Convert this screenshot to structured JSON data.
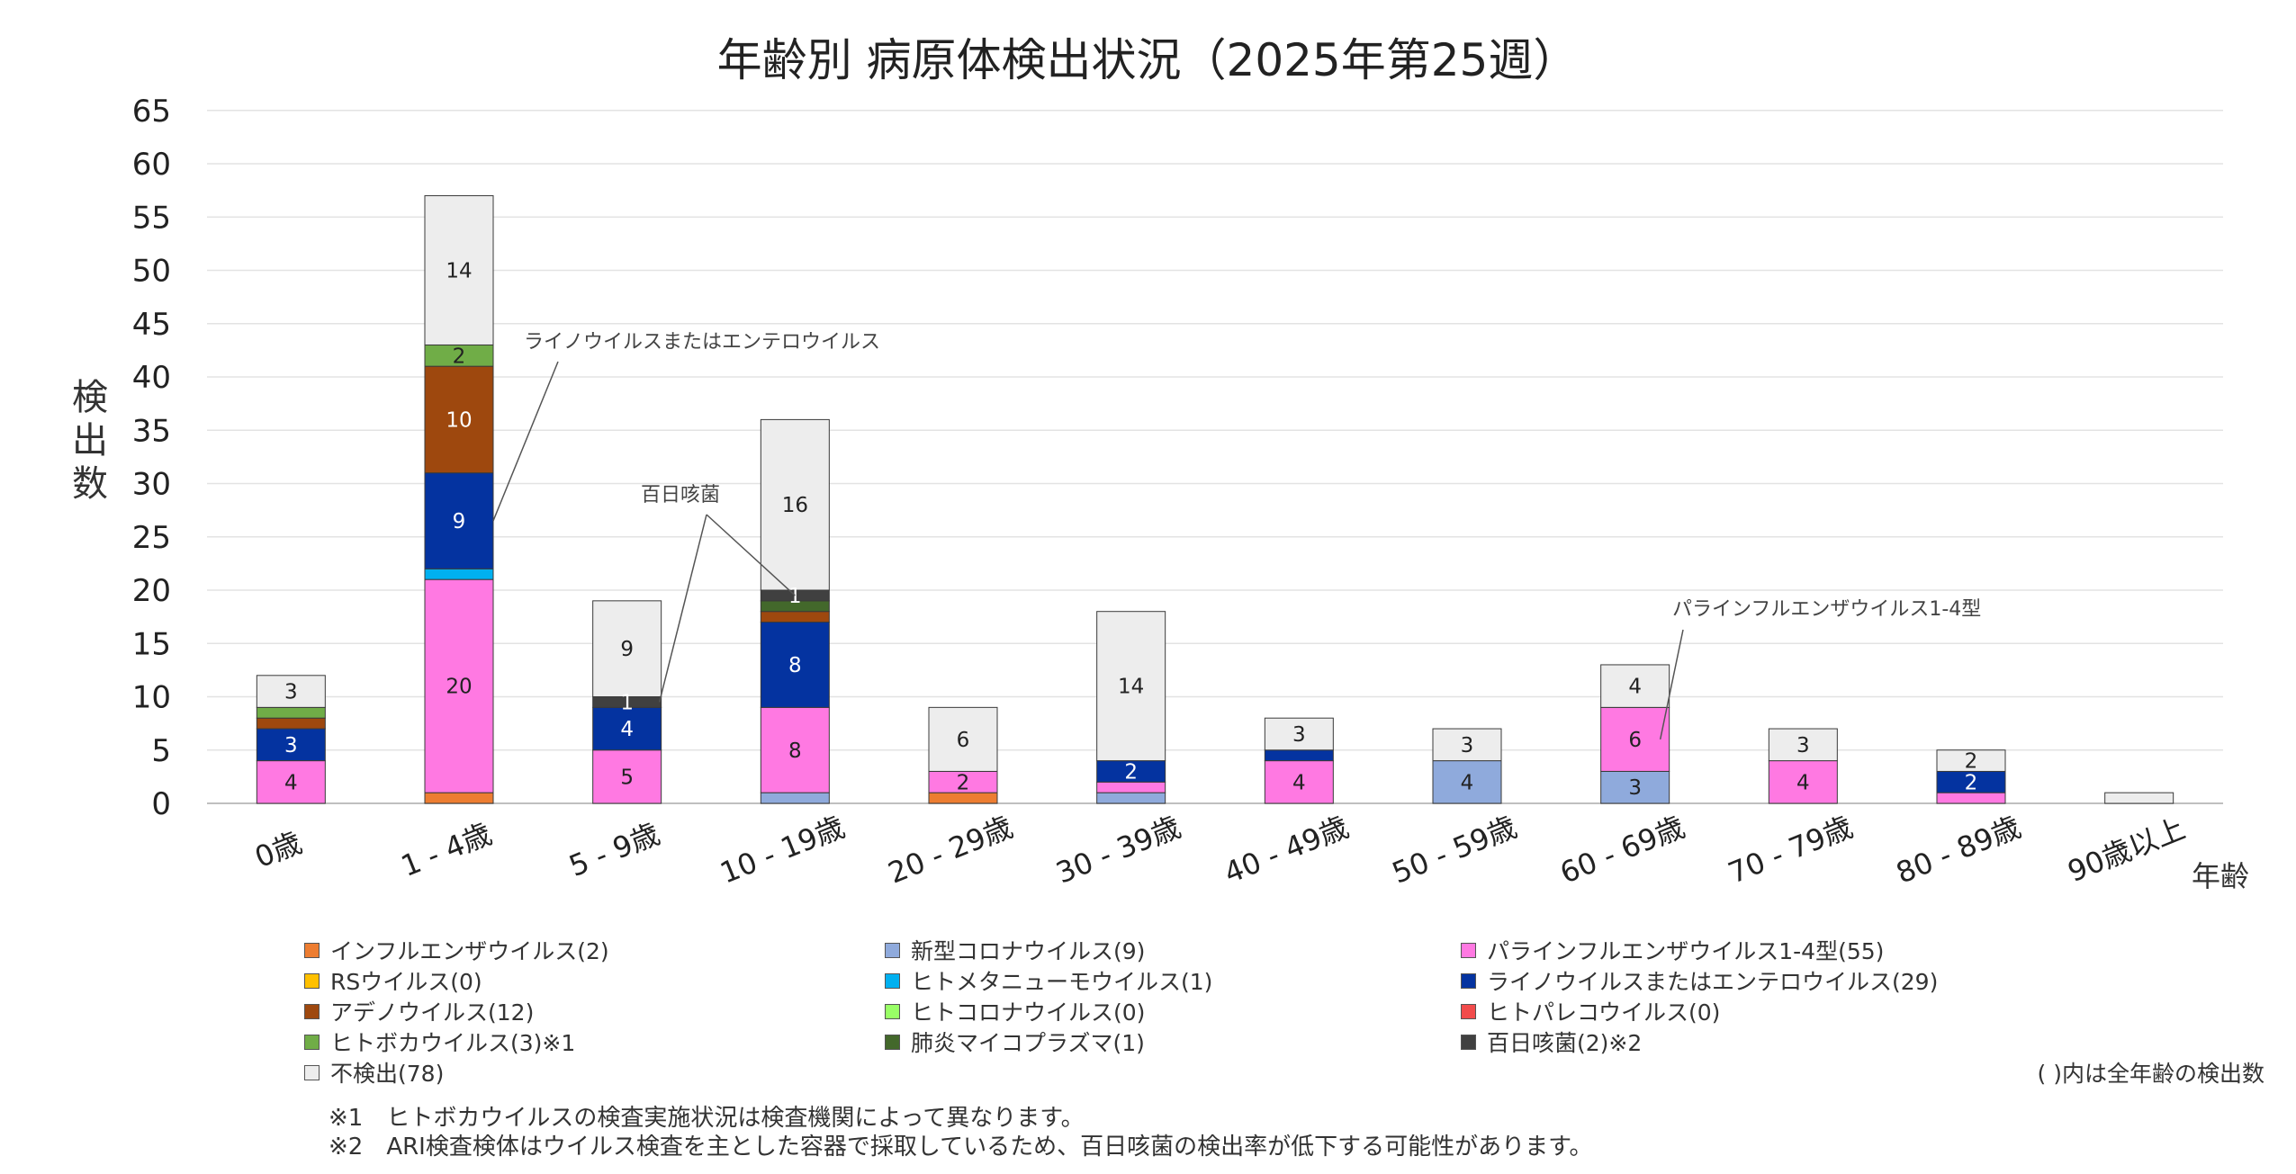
{
  "chart_data": {
    "type": "bar",
    "stacked": true,
    "title": "年齢別 病原体検出状況（2025年第25週）",
    "ylabel": "検出数",
    "xlabel": "年齢",
    "ylim": [
      0,
      65
    ],
    "yticks": [
      0,
      5,
      10,
      15,
      20,
      25,
      30,
      35,
      40,
      45,
      50,
      55,
      60,
      65
    ],
    "grid": true,
    "legend_position": "bottom",
    "categories": [
      "0歳",
      "1 - 4歳",
      "5 - 9歳",
      "10 - 19歳",
      "20 - 29歳",
      "30 - 39歳",
      "40 - 49歳",
      "50 - 59歳",
      "60 - 69歳",
      "70 - 79歳",
      "80 - 89歳",
      "90歳以上"
    ],
    "series": [
      {
        "name": "インフルエンザウイルス(2)",
        "color": "#ED7D31",
        "values": [
          0,
          1,
          0,
          0,
          1,
          0,
          0,
          0,
          0,
          0,
          0,
          0
        ]
      },
      {
        "name": "RSウイルス(0)",
        "color": "#FFC000",
        "values": [
          0,
          0,
          0,
          0,
          0,
          0,
          0,
          0,
          0,
          0,
          0,
          0
        ]
      },
      {
        "name": "アデノウイルス(12)",
        "color": "#9E480E",
        "values": [
          1,
          10,
          0,
          1,
          0,
          0,
          0,
          0,
          0,
          0,
          0,
          0
        ]
      },
      {
        "name": "ヒトボカウイルス(3)※1",
        "color": "#70AD47",
        "values": [
          1,
          2,
          0,
          0,
          0,
          0,
          0,
          0,
          0,
          0,
          0,
          0
        ]
      },
      {
        "name": "新型コロナウイルス(9)",
        "color": "#8FAADC",
        "values": [
          0,
          0,
          0,
          1,
          0,
          1,
          0,
          4,
          3,
          0,
          0,
          0
        ]
      },
      {
        "name": "ヒトメタニューモウイルス(1)",
        "color": "#00B0F0",
        "values": [
          0,
          1,
          0,
          0,
          0,
          0,
          0,
          0,
          0,
          0,
          0,
          0
        ]
      },
      {
        "name": "ヒトコロナウイルス(0)",
        "color": "#99FF66",
        "values": [
          0,
          0,
          0,
          0,
          0,
          0,
          0,
          0,
          0,
          0,
          0,
          0
        ]
      },
      {
        "name": "肺炎マイコプラズマ(1)",
        "color": "#43682B",
        "values": [
          0,
          0,
          0,
          1,
          0,
          0,
          0,
          0,
          0,
          0,
          0,
          0
        ]
      },
      {
        "name": "パラインフルエンザウイルス1-4型(55)",
        "color": "#FF79E2",
        "values": [
          4,
          20,
          5,
          8,
          2,
          1,
          4,
          0,
          6,
          4,
          1,
          0
        ]
      },
      {
        "name": "ライノウイルスまたはエンテロウイルス(29)",
        "color": "#0433A0",
        "values": [
          3,
          9,
          4,
          8,
          0,
          2,
          1,
          0,
          0,
          0,
          2,
          0
        ]
      },
      {
        "name": "ヒトパレコウイルス(0)",
        "color": "#F24B4B",
        "values": [
          0,
          0,
          0,
          0,
          0,
          0,
          0,
          0,
          0,
          0,
          0,
          0
        ]
      },
      {
        "name": "百日咳菌(2)※2",
        "color": "#404040",
        "values": [
          0,
          0,
          1,
          1,
          0,
          0,
          0,
          0,
          0,
          0,
          0,
          0
        ]
      },
      {
        "name": "不検出(78)",
        "color": "#EDEDED",
        "values": [
          3,
          14,
          9,
          16,
          6,
          14,
          3,
          3,
          4,
          3,
          2,
          1
        ]
      }
    ],
    "stack_order": [
      0,
      4,
      8,
      5,
      9,
      2,
      7,
      11,
      3,
      12
    ],
    "data_labels": [
      {
        "category": 0,
        "series": 8,
        "text": "4"
      },
      {
        "category": 0,
        "series": 9,
        "text": "3"
      },
      {
        "category": 0,
        "series": 12,
        "text": "3"
      },
      {
        "category": 1,
        "series": 8,
        "text": "20"
      },
      {
        "category": 1,
        "series": 9,
        "text": "9"
      },
      {
        "category": 1,
        "series": 2,
        "text": "10"
      },
      {
        "category": 1,
        "series": 3,
        "text": "2"
      },
      {
        "category": 1,
        "series": 12,
        "text": "14"
      },
      {
        "category": 2,
        "series": 8,
        "text": "5"
      },
      {
        "category": 2,
        "series": 9,
        "text": "4"
      },
      {
        "category": 2,
        "series": 11,
        "text": "1"
      },
      {
        "category": 2,
        "series": 12,
        "text": "9"
      },
      {
        "category": 3,
        "series": 8,
        "text": "8"
      },
      {
        "category": 3,
        "series": 9,
        "text": "8"
      },
      {
        "category": 3,
        "series": 11,
        "text": "1"
      },
      {
        "category": 3,
        "series": 12,
        "text": "16"
      },
      {
        "category": 4,
        "series": 8,
        "text": "2"
      },
      {
        "category": 4,
        "series": 12,
        "text": "6"
      },
      {
        "category": 5,
        "series": 9,
        "text": "2"
      },
      {
        "category": 5,
        "series": 12,
        "text": "14"
      },
      {
        "category": 6,
        "series": 8,
        "text": "4"
      },
      {
        "category": 6,
        "series": 12,
        "text": "3"
      },
      {
        "category": 7,
        "series": 4,
        "text": "4"
      },
      {
        "category": 7,
        "series": 12,
        "text": "3"
      },
      {
        "category": 8,
        "series": 4,
        "text": "3"
      },
      {
        "category": 8,
        "series": 8,
        "text": "6"
      },
      {
        "category": 8,
        "series": 12,
        "text": "4"
      },
      {
        "category": 9,
        "series": 8,
        "text": "4"
      },
      {
        "category": 9,
        "series": 12,
        "text": "3"
      },
      {
        "category": 10,
        "series": 9,
        "text": "2"
      },
      {
        "category": 10,
        "series": 12,
        "text": "2"
      }
    ],
    "annotations": [
      {
        "text": "ライノウイルスまたはエンテロウイルス",
        "category": 1,
        "series": 9
      },
      {
        "text": "百日咳菌",
        "category": 2,
        "series": 11
      },
      {
        "text": "百日咳菌",
        "category": 3,
        "series": 11
      },
      {
        "text": "パラインフルエンザウイルス1-4型",
        "category": 8,
        "series": 8
      }
    ]
  },
  "legend_note": "( )内は全年齢の検出数",
  "footnotes": [
    "※1　ヒトボカウイルスの検査実施状況は検査機関によって異なります。",
    "※2　ARI検査検体はウイルス検査を主とした容器で採取しているため、百日咳菌の検出率が低下する可能性があります。"
  ]
}
